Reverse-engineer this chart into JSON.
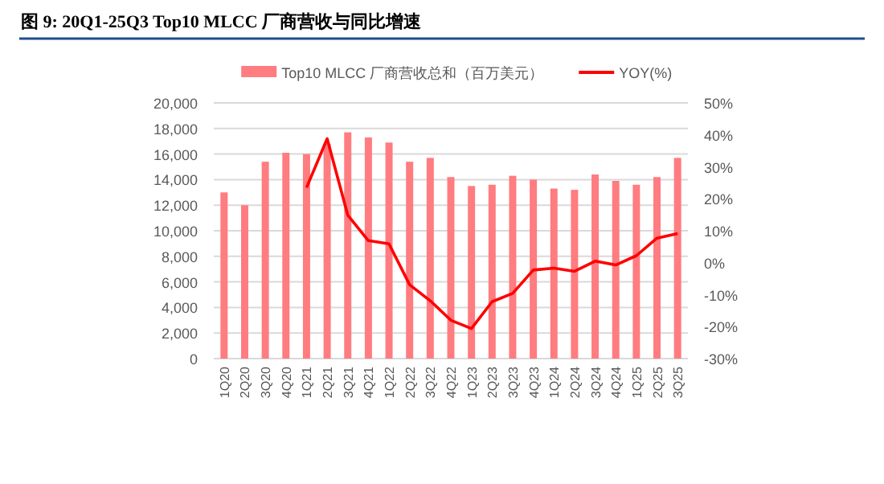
{
  "chart_data": {
    "type": "bar",
    "title": "图 9: 20Q1-25Q3 Top10 MLCC 厂商营收与同比增速",
    "categories": [
      "1Q20",
      "2Q20",
      "3Q20",
      "4Q20",
      "1Q21",
      "2Q21",
      "3Q21",
      "4Q21",
      "1Q22",
      "2Q22",
      "3Q22",
      "4Q22",
      "1Q23",
      "2Q23",
      "3Q23",
      "4Q23",
      "1Q24",
      "2Q24",
      "3Q24",
      "4Q24",
      "1Q25",
      "2Q25",
      "3Q25"
    ],
    "series": [
      {
        "name": "Top10 MLCC 厂商营收总和（百万美元）",
        "color": "#ff7c80",
        "values": [
          13000,
          12000,
          15400,
          16100,
          16000,
          16800,
          17700,
          17300,
          16900,
          15400,
          15700,
          14200,
          13500,
          13600,
          14300,
          14000,
          13300,
          13200,
          14400,
          13900,
          13600,
          14200,
          15700
        ]
      },
      {
        "name": "YOY(%)",
        "type": "line",
        "axis": "y2",
        "color": "#ff0000",
        "values": [
          null,
          null,
          null,
          null,
          23.5,
          38.8,
          14.9,
          6.9,
          5.9,
          -6.9,
          -11.9,
          -18,
          -20.6,
          -12.2,
          -9.6,
          -2.3,
          -1.7,
          -2.7,
          0.5,
          -0.7,
          2.2,
          7.7,
          9.1
        ]
      }
    ],
    "ylim": [
      0,
      20000
    ],
    "yticks": [
      {
        "value": 0,
        "label": "0"
      },
      {
        "value": 2000,
        "label": "2,000"
      },
      {
        "value": 4000,
        "label": "4,000"
      },
      {
        "value": 6000,
        "label": "6,000"
      },
      {
        "value": 8000,
        "label": "8,000"
      },
      {
        "value": 10000,
        "label": "10,000"
      },
      {
        "value": 12000,
        "label": "12,000"
      },
      {
        "value": 14000,
        "label": "14,000"
      },
      {
        "value": 16000,
        "label": "16,000"
      },
      {
        "value": 18000,
        "label": "18,000"
      },
      {
        "value": 20000,
        "label": "20,000"
      }
    ],
    "y2lim": [
      -30,
      50
    ],
    "y2ticks": [
      {
        "value": -30,
        "label": "-30%"
      },
      {
        "value": -20,
        "label": "-20%"
      },
      {
        "value": -10,
        "label": "-10%"
      },
      {
        "value": 0,
        "label": "0%"
      },
      {
        "value": 10,
        "label": "10%"
      },
      {
        "value": 20,
        "label": "20%"
      },
      {
        "value": 30,
        "label": "30%"
      },
      {
        "value": 40,
        "label": "40%"
      },
      {
        "value": 50,
        "label": "50%"
      }
    ],
    "grid": "y",
    "legend": "top",
    "marker": "none",
    "line_style": "solid"
  }
}
